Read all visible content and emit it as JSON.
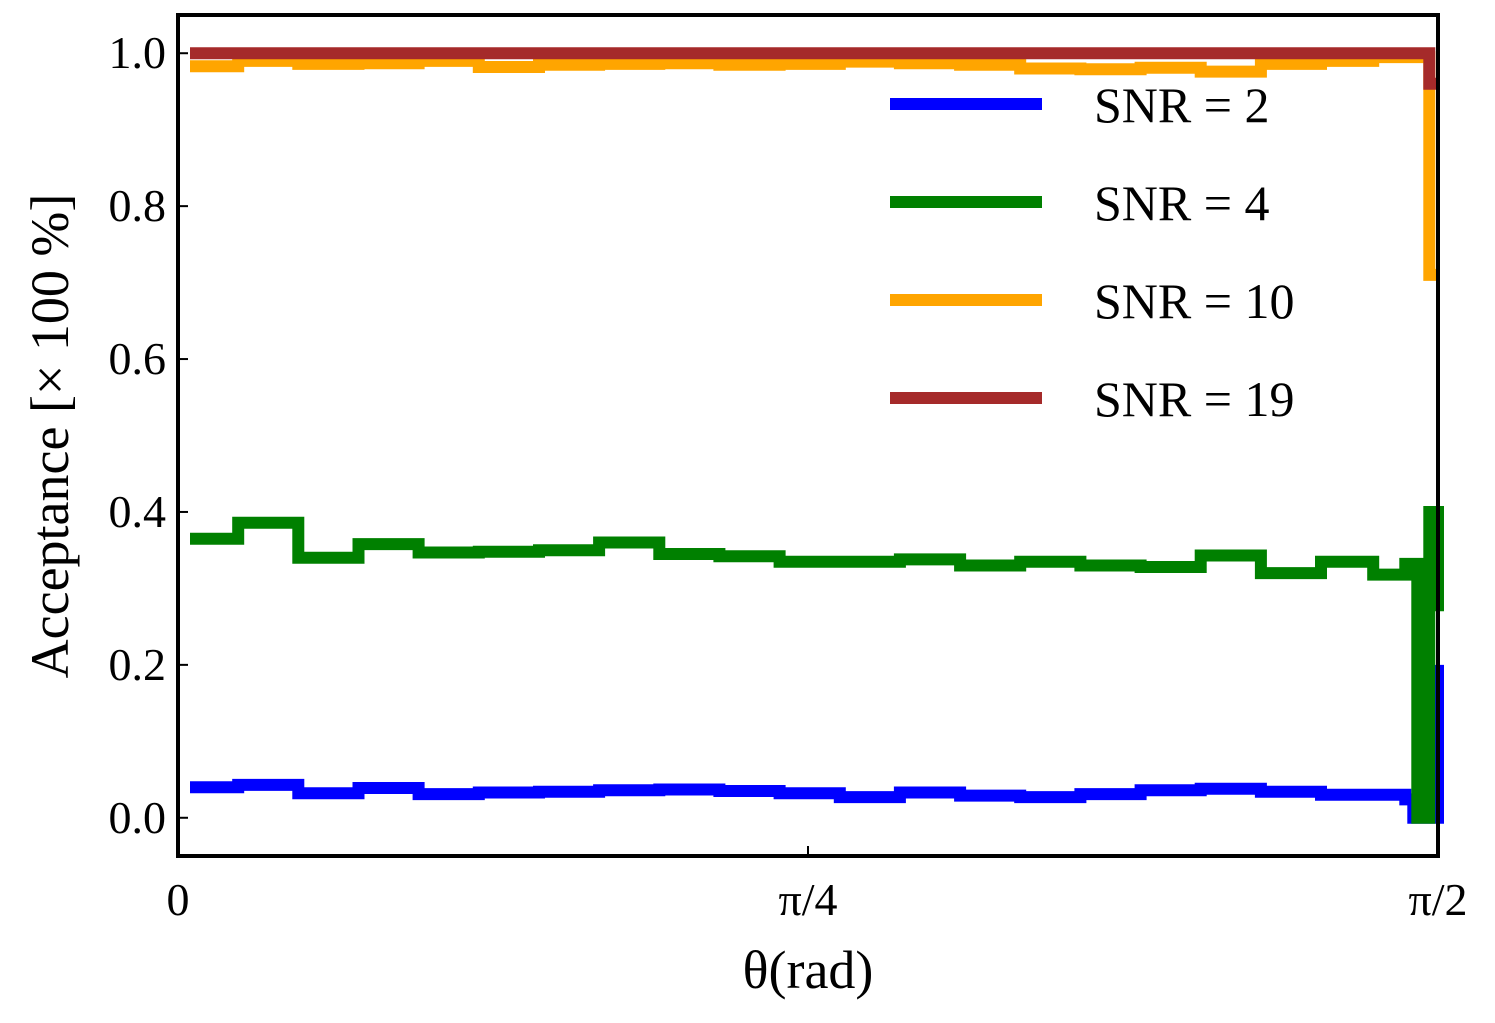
{
  "chart_data": {
    "type": "line",
    "step": true,
    "xlabel": "θ(rad)",
    "ylabel": "Acceptance [× 100 %]",
    "xlim": [
      0,
      1.5708
    ],
    "ylim": [
      -0.05,
      1.05
    ],
    "xticks": [
      {
        "value": 0,
        "label": "0"
      },
      {
        "value": 0.7854,
        "label": "π/4"
      },
      {
        "value": 1.5708,
        "label": "π/2"
      }
    ],
    "yticks": [
      {
        "value": 0.0,
        "label": "0.0"
      },
      {
        "value": 0.2,
        "label": "0.2"
      },
      {
        "value": 0.4,
        "label": "0.4"
      },
      {
        "value": 0.6,
        "label": "0.6"
      },
      {
        "value": 0.8,
        "label": "0.8"
      },
      {
        "value": 1.0,
        "label": "1.0"
      }
    ],
    "grid": false,
    "legend_position": "top-right",
    "series": [
      {
        "name": "SNR = 2",
        "color": "#0000ff",
        "x": [
          0.015,
          0.075,
          0.15,
          0.225,
          0.3,
          0.375,
          0.45,
          0.525,
          0.6,
          0.675,
          0.75,
          0.825,
          0.9,
          0.975,
          1.05,
          1.125,
          1.2,
          1.275,
          1.35,
          1.425,
          1.53,
          1.54,
          1.56,
          1.5708
        ],
        "y": [
          0.04,
          0.043,
          0.032,
          0.039,
          0.031,
          0.033,
          0.034,
          0.036,
          0.037,
          0.035,
          0.032,
          0.027,
          0.033,
          0.029,
          0.027,
          0.031,
          0.036,
          0.038,
          0.034,
          0.03,
          0.024,
          0.0,
          0.0,
          0.2
        ]
      },
      {
        "name": "SNR = 4",
        "color": "#008000",
        "x": [
          0.015,
          0.075,
          0.15,
          0.225,
          0.3,
          0.375,
          0.45,
          0.525,
          0.6,
          0.675,
          0.75,
          0.825,
          0.9,
          0.975,
          1.05,
          1.125,
          1.2,
          1.275,
          1.35,
          1.425,
          1.49,
          1.53,
          1.545,
          1.56,
          1.5708
        ],
        "y": [
          0.365,
          0.386,
          0.34,
          0.358,
          0.347,
          0.348,
          0.35,
          0.36,
          0.345,
          0.342,
          0.335,
          0.335,
          0.338,
          0.33,
          0.335,
          0.33,
          0.328,
          0.343,
          0.32,
          0.335,
          0.318,
          0.332,
          0.0,
          0.4,
          0.27
        ]
      },
      {
        "name": "SNR = 10",
        "color": "#ffa500",
        "x": [
          0.015,
          0.075,
          0.15,
          0.225,
          0.3,
          0.375,
          0.45,
          0.525,
          0.6,
          0.675,
          0.75,
          0.825,
          0.9,
          0.975,
          1.05,
          1.125,
          1.2,
          1.275,
          1.35,
          1.425,
          1.49,
          1.56,
          1.5708
        ],
        "y": [
          0.983,
          0.99,
          0.986,
          0.987,
          0.99,
          0.982,
          0.985,
          0.986,
          0.987,
          0.985,
          0.986,
          0.989,
          0.987,
          0.985,
          0.98,
          0.979,
          0.981,
          0.976,
          0.986,
          0.99,
          0.995,
          0.71,
          0.71
        ]
      },
      {
        "name": "SNR = 19",
        "color": "#a52a2a",
        "x": [
          0.015,
          1.56,
          1.5708
        ],
        "y": [
          1.0,
          0.96,
          0.96
        ]
      }
    ]
  }
}
